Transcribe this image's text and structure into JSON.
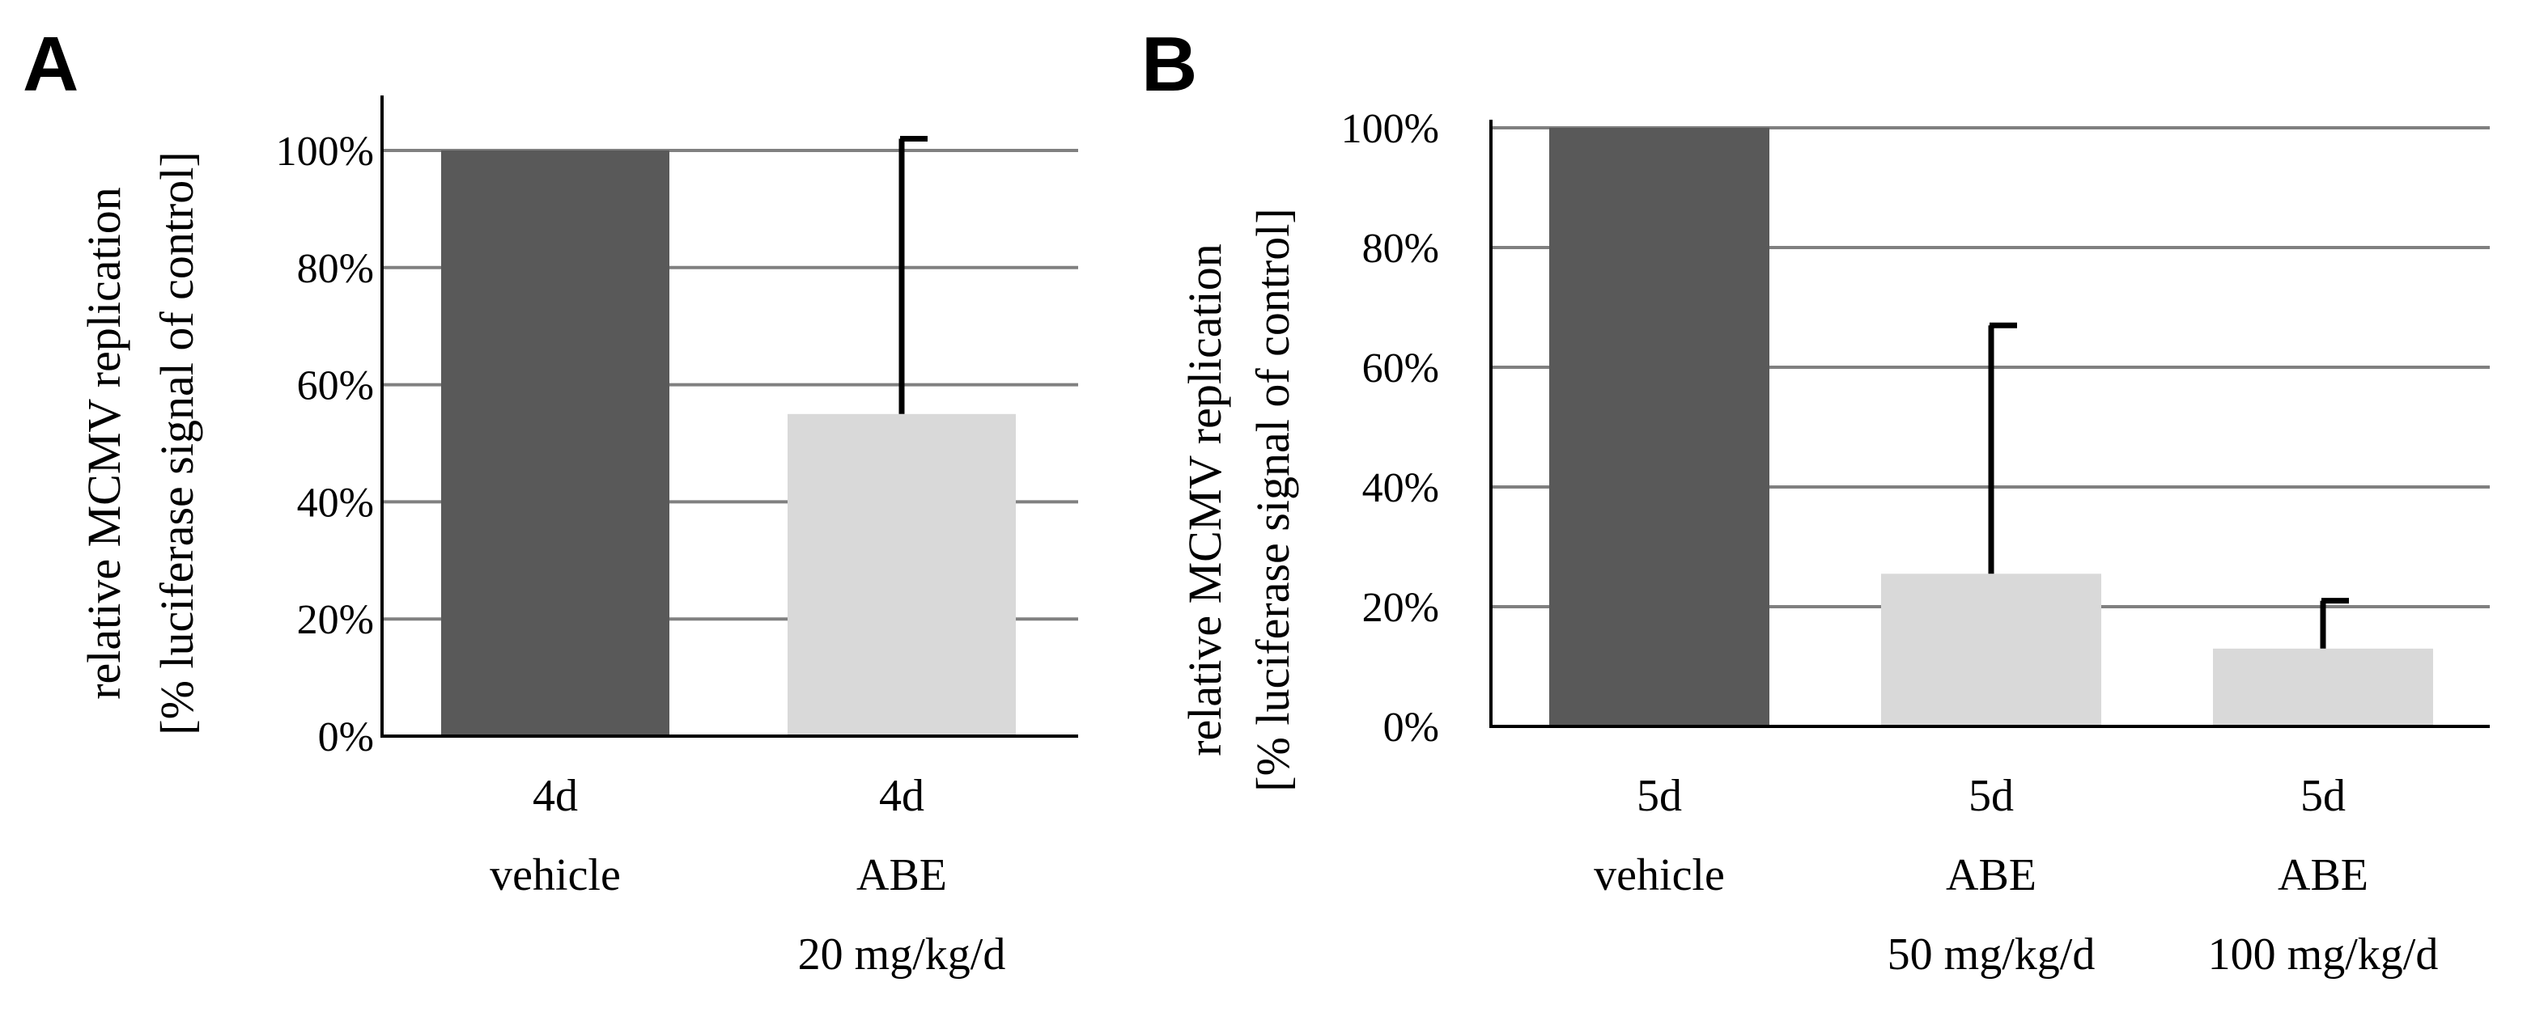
{
  "chart_data": [
    {
      "type": "bar",
      "panel": "A",
      "ylabel_lines": [
        "relative MCMV replication",
        "[% luciferase signal of control]"
      ],
      "ylim": [
        0,
        100
      ],
      "yticks": [
        "0%",
        "20%",
        "40%",
        "60%",
        "80%",
        "100%"
      ],
      "grid": true,
      "categories": [
        [
          "4d",
          "vehicle"
        ],
        [
          "4d",
          "ABE",
          "20 mg/kg/d"
        ]
      ],
      "values": [
        100,
        55
      ],
      "error_upper": [
        null,
        102
      ],
      "colors": [
        "#595959",
        "#d9d9d9"
      ]
    },
    {
      "type": "bar",
      "panel": "B",
      "ylabel_lines": [
        "relative MCMV replication",
        "[% luciferase signal of control]"
      ],
      "ylim": [
        0,
        100
      ],
      "yticks": [
        "0%",
        "20%",
        "40%",
        "60%",
        "80%",
        "100%"
      ],
      "grid": true,
      "categories": [
        [
          "5d",
          "vehicle"
        ],
        [
          "5d",
          "ABE",
          "50 mg/kg/d"
        ],
        [
          "5d",
          "ABE",
          "100 mg/kg/d"
        ]
      ],
      "values": [
        100,
        25.5,
        13
      ],
      "error_upper": [
        null,
        67,
        21
      ],
      "colors": [
        "#595959",
        "#d9d9d9",
        "#d9d9d9"
      ]
    }
  ]
}
